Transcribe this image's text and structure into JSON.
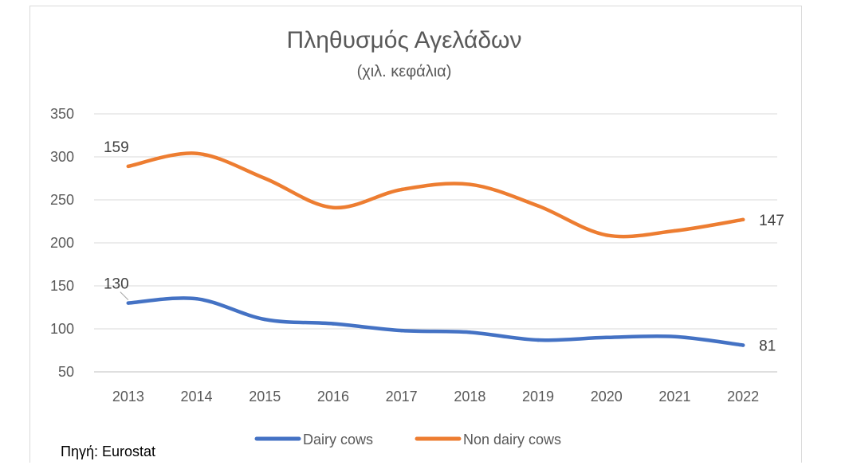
{
  "source": "Πηγή: Eurostat",
  "chart_data": {
    "type": "line",
    "title": "Πληθυσμός Αγελάδων",
    "subtitle": "(χιλ. κεφάλια)",
    "categories": [
      "2013",
      "2014",
      "2015",
      "2016",
      "2017",
      "2018",
      "2019",
      "2020",
      "2021",
      "2022"
    ],
    "y_ticks": [
      50,
      100,
      150,
      200,
      250,
      300,
      350
    ],
    "ylim": [
      50,
      350
    ],
    "grid": true,
    "legend_position": "bottom",
    "series": [
      {
        "name": "Dairy cows",
        "color": "#4472C4",
        "values": [
          130,
          135,
          111,
          106,
          98,
          96,
          87,
          90,
          91,
          81
        ],
        "data_labels": [
          "130",
          "",
          "",
          "",
          "",
          "",
          "",
          "",
          "",
          "81"
        ]
      },
      {
        "name": "Non dairy cows",
        "color": "#ED7D31",
        "values": [
          289,
          304,
          275,
          241,
          262,
          268,
          243,
          209,
          214,
          227
        ],
        "data_labels": [
          "159",
          "",
          "",
          "",
          "",
          "",
          "",
          "",
          "",
          "147"
        ]
      }
    ]
  }
}
